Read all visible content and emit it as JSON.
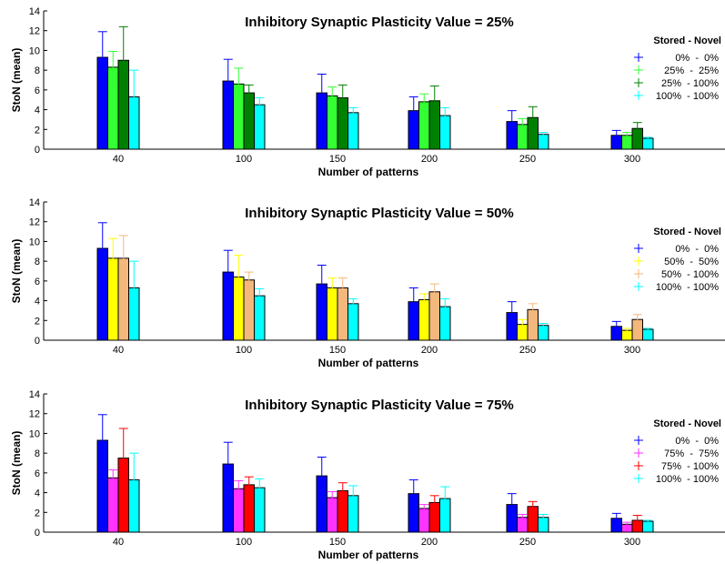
{
  "chart_data": [
    {
      "type": "bar",
      "title": "Inhibitory Synaptic Plasticity Value = 25%",
      "xlabel": "Number of patterns",
      "ylabel": "StoN (mean)",
      "ylim": [
        0,
        14
      ],
      "yticks": [
        0,
        2,
        4,
        6,
        8,
        10,
        12,
        14
      ],
      "categories": [
        "40",
        "100",
        "150",
        "200",
        "250",
        "300"
      ],
      "legend_title": "Stored - Novel",
      "legend_position": "right",
      "series": [
        {
          "name": "0%  -  0%",
          "color": "#0000ff",
          "values": [
            9.3,
            6.9,
            5.7,
            3.9,
            2.8,
            1.4
          ],
          "errors": [
            2.6,
            2.2,
            1.9,
            1.4,
            1.1,
            0.5
          ]
        },
        {
          "name": "25%  -  25%",
          "color": "#33ff33",
          "values": [
            8.3,
            6.6,
            5.4,
            4.8,
            2.5,
            1.4
          ],
          "errors": [
            1.6,
            1.6,
            0.9,
            0.8,
            0.6,
            0.3
          ]
        },
        {
          "name": "25%  - 100%",
          "color": "#008000",
          "values": [
            9.0,
            5.7,
            5.2,
            4.9,
            3.2,
            2.1
          ],
          "errors": [
            3.4,
            0.8,
            1.3,
            1.5,
            1.1,
            0.6
          ]
        },
        {
          "name": "100%  - 100%",
          "color": "#00ffff",
          "values": [
            5.3,
            4.5,
            3.7,
            3.4,
            1.5,
            1.1
          ],
          "errors": [
            2.7,
            0.7,
            0.5,
            0.8,
            0.2,
            0.1
          ]
        }
      ]
    },
    {
      "type": "bar",
      "title": "Inhibitory Synaptic Plasticity Value = 50%",
      "xlabel": "Number of patterns",
      "ylabel": "StoN (mean)",
      "ylim": [
        0,
        14
      ],
      "yticks": [
        0,
        2,
        4,
        6,
        8,
        10,
        12,
        14
      ],
      "categories": [
        "40",
        "100",
        "150",
        "200",
        "250",
        "300"
      ],
      "legend_title": "Stored - Novel",
      "legend_position": "right",
      "series": [
        {
          "name": "0%  -  0%",
          "color": "#0000ff",
          "values": [
            9.3,
            6.9,
            5.7,
            3.9,
            2.8,
            1.4
          ],
          "errors": [
            2.6,
            2.2,
            1.9,
            1.4,
            1.1,
            0.5
          ]
        },
        {
          "name": "50%  -  50%",
          "color": "#ffff00",
          "values": [
            8.3,
            6.4,
            5.3,
            4.1,
            1.6,
            1.0
          ],
          "errors": [
            2.0,
            2.2,
            1.0,
            0.6,
            0.5,
            0.2
          ]
        },
        {
          "name": "50%  - 100%",
          "color": "#f4b77c",
          "values": [
            8.3,
            6.1,
            5.3,
            4.9,
            3.1,
            2.1
          ],
          "errors": [
            2.3,
            0.8,
            1.0,
            0.8,
            0.6,
            0.5
          ]
        },
        {
          "name": "100%  - 100%",
          "color": "#00ffff",
          "values": [
            5.3,
            4.5,
            3.7,
            3.4,
            1.5,
            1.1
          ],
          "errors": [
            2.7,
            0.7,
            0.5,
            0.8,
            0.2,
            0.1
          ]
        }
      ]
    },
    {
      "type": "bar",
      "title": "Inhibitory Synaptic Plasticity Value = 75%",
      "xlabel": "Number of patterns",
      "ylabel": "StoN (mean)",
      "ylim": [
        0,
        14
      ],
      "yticks": [
        0,
        2,
        4,
        6,
        8,
        10,
        12,
        14
      ],
      "categories": [
        "40",
        "100",
        "150",
        "200",
        "250",
        "300"
      ],
      "legend_title": "Stored - Novel",
      "legend_position": "right",
      "series": [
        {
          "name": "0%  -  0%",
          "color": "#0000ff",
          "values": [
            9.3,
            6.9,
            5.7,
            3.9,
            2.8,
            1.4
          ],
          "errors": [
            2.6,
            2.2,
            1.9,
            1.4,
            1.1,
            0.5
          ]
        },
        {
          "name": "75%  -  75%",
          "color": "#ff33ff",
          "values": [
            5.5,
            4.4,
            3.5,
            2.4,
            1.5,
            0.8
          ],
          "errors": [
            0.8,
            0.8,
            0.6,
            0.4,
            0.3,
            0.2
          ]
        },
        {
          "name": "75%  - 100%",
          "color": "#ff0000",
          "values": [
            7.5,
            4.8,
            4.2,
            3.0,
            2.6,
            1.2
          ],
          "errors": [
            3.0,
            0.8,
            0.8,
            0.7,
            0.5,
            0.5
          ]
        },
        {
          "name": "100%  - 100%",
          "color": "#00ffff",
          "values": [
            5.3,
            4.5,
            3.7,
            3.4,
            1.5,
            1.1
          ],
          "errors": [
            2.7,
            0.9,
            1.0,
            1.2,
            0.3,
            0.1
          ]
        }
      ]
    }
  ]
}
